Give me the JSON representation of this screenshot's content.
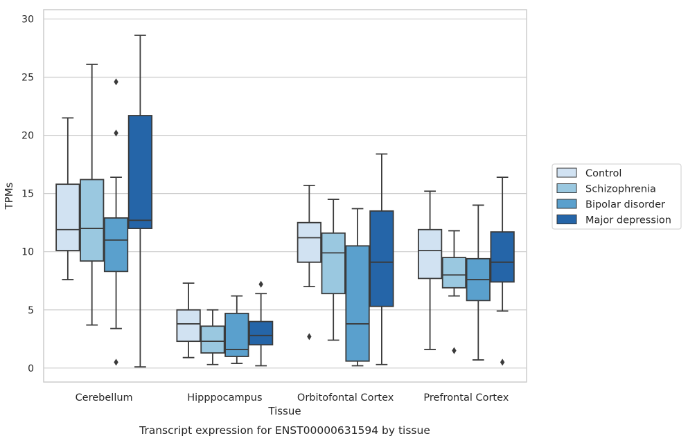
{
  "chart_data": {
    "type": "box",
    "title": "Transcript expression for ENST00000631594 by tissue",
    "xlabel": "Tissue",
    "ylabel": "TPMs",
    "ylim": [
      -1.2,
      30.8
    ],
    "yticks": [
      0,
      5,
      10,
      15,
      20,
      25,
      30
    ],
    "grid": "horizontal",
    "legend_position": "right",
    "categories": [
      "Cerebellum",
      "Hipppocampus",
      "Orbitofontal Cortex",
      "Prefrontal Cortex"
    ],
    "series": [
      {
        "name": "Control",
        "color": "#d1e2f2",
        "boxes": [
          {
            "whisker_low": 7.6,
            "q1": 10.1,
            "median": 11.9,
            "q3": 15.8,
            "whisker_high": 21.5,
            "outliers": []
          },
          {
            "whisker_low": 0.9,
            "q1": 2.3,
            "median": 3.8,
            "q3": 5.0,
            "whisker_high": 7.3,
            "outliers": []
          },
          {
            "whisker_low": 7.0,
            "q1": 9.1,
            "median": 11.2,
            "q3": 12.5,
            "whisker_high": 15.7,
            "outliers": [
              2.7
            ]
          },
          {
            "whisker_low": 1.6,
            "q1": 7.7,
            "median": 10.1,
            "q3": 11.9,
            "whisker_high": 15.2,
            "outliers": []
          }
        ]
      },
      {
        "name": "Schizophrenia",
        "color": "#9ac8e0",
        "boxes": [
          {
            "whisker_low": 3.7,
            "q1": 9.2,
            "median": 12.0,
            "q3": 16.2,
            "whisker_high": 26.1,
            "outliers": []
          },
          {
            "whisker_low": 0.3,
            "q1": 1.3,
            "median": 2.3,
            "q3": 3.6,
            "whisker_high": 5.0,
            "outliers": []
          },
          {
            "whisker_low": 2.4,
            "q1": 6.4,
            "median": 9.9,
            "q3": 11.6,
            "whisker_high": 14.5,
            "outliers": []
          },
          {
            "whisker_low": 6.2,
            "q1": 6.9,
            "median": 8.0,
            "q3": 9.5,
            "whisker_high": 11.8,
            "outliers": [
              1.5
            ]
          }
        ]
      },
      {
        "name": "Bipolar disorder",
        "color": "#5aa0cd",
        "boxes": [
          {
            "whisker_low": 3.4,
            "q1": 8.3,
            "median": 11.0,
            "q3": 12.9,
            "whisker_high": 16.4,
            "outliers": [
              0.5,
              20.2,
              24.6
            ]
          },
          {
            "whisker_low": 0.4,
            "q1": 1.0,
            "median": 1.6,
            "q3": 4.7,
            "whisker_high": 6.2,
            "outliers": []
          },
          {
            "whisker_low": 0.2,
            "q1": 0.6,
            "median": 3.8,
            "q3": 10.5,
            "whisker_high": 13.7,
            "outliers": []
          },
          {
            "whisker_low": 0.7,
            "q1": 5.8,
            "median": 7.6,
            "q3": 9.4,
            "whisker_high": 14.0,
            "outliers": []
          }
        ]
      },
      {
        "name": "Major depression",
        "color": "#2565a8",
        "boxes": [
          {
            "whisker_low": 0.1,
            "q1": 12.0,
            "median": 12.7,
            "q3": 21.7,
            "whisker_high": 28.6,
            "outliers": []
          },
          {
            "whisker_low": 0.2,
            "q1": 2.0,
            "median": 2.8,
            "q3": 4.0,
            "whisker_high": 6.4,
            "outliers": [
              7.2
            ]
          },
          {
            "whisker_low": 0.3,
            "q1": 5.3,
            "median": 9.1,
            "q3": 13.5,
            "whisker_high": 18.4,
            "outliers": []
          },
          {
            "whisker_low": 4.9,
            "q1": 7.4,
            "median": 9.1,
            "q3": 11.7,
            "whisker_high": 16.4,
            "outliers": [
              0.5
            ]
          }
        ]
      }
    ]
  }
}
